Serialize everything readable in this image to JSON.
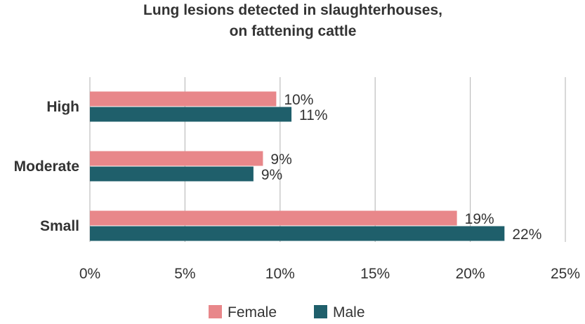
{
  "chart_data": {
    "type": "bar",
    "orientation": "horizontal",
    "title": "Lung lesions detected in slaughterhouses, on fattening cattle",
    "title_lines": [
      "Lung lesions detected in slaughterhouses,",
      "on fattening cattle"
    ],
    "categories": [
      "High",
      "Moderate",
      "Small"
    ],
    "series": [
      {
        "name": "Female",
        "color": "#e8878a",
        "values": [
          9.8,
          9.1,
          19.3
        ],
        "labels": [
          "10%",
          "9%",
          "19%"
        ]
      },
      {
        "name": "Male",
        "color": "#1f5f6b",
        "values": [
          10.6,
          8.6,
          21.8
        ],
        "labels": [
          "11%",
          "9%",
          "22%"
        ]
      }
    ],
    "xlim": [
      0,
      25
    ],
    "xticks": [
      0,
      5,
      10,
      15,
      20,
      25
    ],
    "xtick_labels": [
      "0%",
      "5%",
      "10%",
      "15%",
      "20%",
      "25%"
    ],
    "grid": "vertical",
    "legend": "bottom-center",
    "xlabel": "",
    "ylabel": ""
  }
}
